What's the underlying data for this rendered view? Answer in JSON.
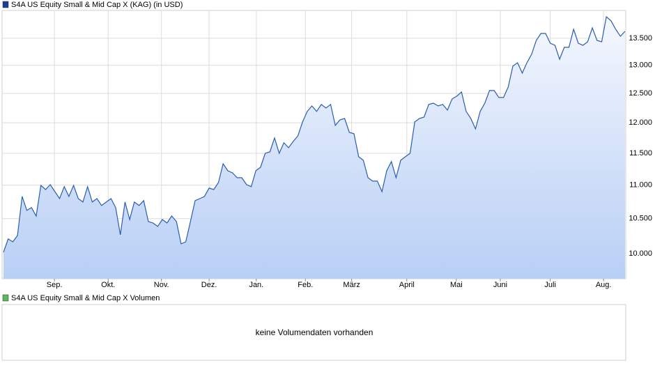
{
  "chart_data": {
    "type": "line",
    "title": "S4A US Equity Small & Mid Cap X (KAG) (in USD)",
    "series": [
      {
        "name": "S4A US Equity Small & Mid Cap X (KAG) (in USD)",
        "color": "#2a5db0",
        "values": [
          10019,
          10206,
          10166,
          10255,
          10829,
          10621,
          10662,
          10538,
          10998,
          10934,
          11009,
          10902,
          10797,
          10977,
          10829,
          10998,
          10797,
          10745,
          10977,
          10745,
          10797,
          10693,
          10745,
          10797,
          10662,
          10266,
          10745,
          10487,
          10745,
          10693,
          10766,
          10457,
          10436,
          10386,
          10487,
          10436,
          10538,
          10457,
          10137,
          10166,
          10457,
          10766,
          10797,
          10829,
          10956,
          10934,
          11041,
          11334,
          11224,
          11192,
          11116,
          11116,
          11009,
          10977,
          11224,
          11279,
          11500,
          11522,
          11749,
          11500,
          11670,
          11590,
          11692,
          11783,
          12014,
          12191,
          12285,
          12191,
          12310,
          12249,
          12310,
          11956,
          12049,
          12072,
          11840,
          11818,
          11445,
          11389,
          11116,
          11063,
          11063,
          10902,
          11224,
          11368,
          11116,
          11389,
          11445,
          11500,
          12014,
          12072,
          12096,
          12310,
          12333,
          12285,
          12310,
          12214,
          12405,
          12453,
          12526,
          12191,
          12072,
          11898,
          12191,
          12333,
          12551,
          12551,
          12430,
          12430,
          12611,
          12985,
          13047,
          12860,
          13047,
          13201,
          13459,
          13591,
          13591,
          13407,
          13368,
          13111,
          13330,
          13330,
          13670,
          13407,
          13368,
          13433,
          13697,
          13459,
          13433,
          13911,
          13831,
          13670,
          13538,
          13630
        ]
      }
    ],
    "xlim": [
      0,
      133
    ],
    "xticks": [
      {
        "value": 10.9,
        "label": "Sep."
      },
      {
        "value": 22.4,
        "label": "Okt."
      },
      {
        "value": 33.8,
        "label": "Nov."
      },
      {
        "value": 44,
        "label": "Dez."
      },
      {
        "value": 54.1,
        "label": "Jan."
      },
      {
        "value": 64.6,
        "label": "Feb."
      },
      {
        "value": 74.5,
        "label": "März"
      },
      {
        "value": 86.3,
        "label": "April"
      },
      {
        "value": 96.9,
        "label": "Mai"
      },
      {
        "value": 106.3,
        "label": "Juni"
      },
      {
        "value": 117,
        "label": "Juli"
      },
      {
        "value": 128.4,
        "label": "Aug."
      }
    ],
    "ylim": [
      9656,
      14033
    ],
    "log_scale": true,
    "grid": true,
    "yticks": [
      {
        "value": 10000,
        "label": "10.000"
      },
      {
        "value": 10500,
        "label": "10.500"
      },
      {
        "value": 11000,
        "label": "11.000"
      },
      {
        "value": 11500,
        "label": "11.500"
      },
      {
        "value": 12000,
        "label": "12.000"
      },
      {
        "value": 12500,
        "label": "12.500"
      },
      {
        "value": 13000,
        "label": "13.000"
      },
      {
        "value": 13500,
        "label": "13.500"
      }
    ]
  },
  "volume_panel": {
    "title": "S4A US Equity Small & Mid Cap X Volumen",
    "message": "keine Volumendaten vorhanden"
  }
}
